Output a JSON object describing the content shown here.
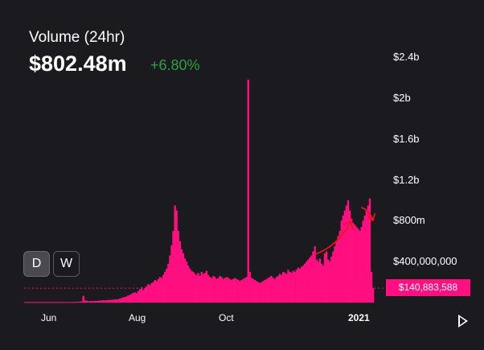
{
  "header": {
    "title": "Volume (24hr)",
    "value": "$802.48m",
    "change": "+6.80%"
  },
  "range_buttons": [
    {
      "label": "D",
      "active": true
    },
    {
      "label": "W",
      "active": false
    }
  ],
  "current_badge": "$140,883,588",
  "colors": {
    "bar": "#ff0f80",
    "positive": "#2ea043",
    "annotation": "#e8161f"
  },
  "chart_data": {
    "type": "bar",
    "y_ticks": [
      "$2.4b",
      "$2b",
      "$1.6b",
      "$1.2b",
      "$800m",
      "$400,000,000"
    ],
    "y_tick_values": [
      2400000000,
      2000000000,
      1600000000,
      1200000000,
      800000000,
      400000000
    ],
    "x_ticks": [
      "Jun",
      "Aug",
      "Oct",
      "2021"
    ],
    "ylim": [
      0,
      2600000000
    ],
    "current_value": 140883588,
    "series": [
      {
        "values": [
          5,
          5,
          5,
          5,
          5,
          5,
          5,
          5,
          5,
          5,
          5,
          5,
          5,
          5,
          5,
          5,
          5,
          5,
          5,
          5,
          5,
          5,
          5,
          5,
          5,
          5,
          5,
          5,
          5,
          5,
          5,
          8,
          8,
          10,
          10,
          65,
          20,
          18,
          12,
          15,
          15,
          14,
          16,
          15,
          17,
          18,
          20,
          22,
          20,
          22,
          25,
          24,
          26,
          28,
          30,
          32,
          30,
          40,
          45,
          50,
          55,
          60,
          70,
          75,
          85,
          95,
          100,
          90,
          110,
          130,
          150,
          120,
          140,
          160,
          180,
          170,
          190,
          200,
          220,
          210,
          230,
          250,
          240,
          270,
          300,
          330,
          380,
          460,
          560,
          700,
          950,
          900,
          700,
          600,
          520,
          480,
          430,
          400,
          360,
          330,
          310,
          300,
          280,
          270,
          290,
          260,
          300,
          280,
          290,
          310,
          270,
          250,
          240,
          260,
          250,
          230,
          240,
          260,
          250,
          230,
          240,
          250,
          240,
          230,
          220,
          230,
          240,
          230,
          220,
          210,
          220,
          230,
          240,
          250,
          2180,
          300,
          240,
          230,
          220,
          210,
          200,
          190,
          200,
          210,
          220,
          230,
          240,
          250,
          260,
          240,
          230,
          250,
          260,
          280,
          270,
          300,
          290,
          280,
          320,
          300,
          290,
          310,
          300,
          320,
          340,
          330,
          350,
          360,
          380,
          400,
          420,
          440,
          460,
          500,
          550,
          420,
          400,
          430,
          380,
          360,
          480,
          500,
          420,
          400,
          450,
          500,
          550,
          600,
          650,
          700,
          800,
          850,
          900,
          950,
          1000,
          900,
          820,
          780,
          760,
          740,
          720,
          700,
          740,
          800,
          850,
          900,
          950,
          1020,
          300,
          140
        ]
      }
    ]
  }
}
